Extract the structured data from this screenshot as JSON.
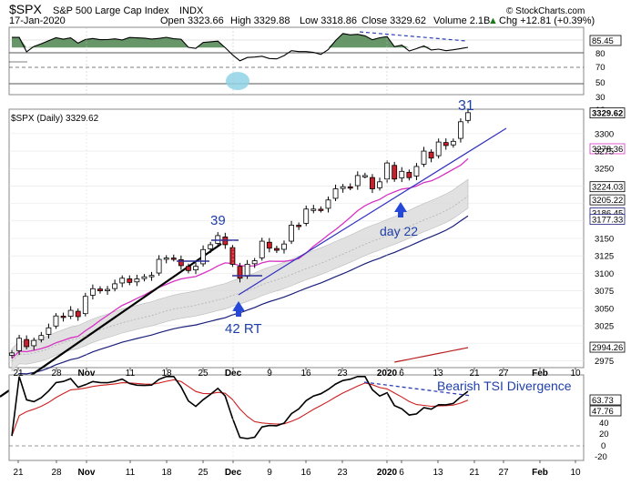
{
  "header": {
    "symbol": "$SPX",
    "name": "S&P 500 Large Cap Index",
    "exchange": "INDX",
    "date": "17-Jan-2020",
    "open": "Open 3323.66",
    "high": "High 3329.88",
    "low": "Low 3318.86",
    "close": "Close 3329.62",
    "volume": "Volume 2.1B",
    "chg": "Chg +12.81 (+0.39%)",
    "up_arrow": "▲",
    "credit": "© StockCharts.com"
  },
  "colors": {
    "candle_up": "#ffffff",
    "candle_down": "#cc1f2a",
    "ma_fast": "#d633c4",
    "ma_mid": "#1a1f7a",
    "trendline": "#3030c0",
    "rsi_fill": "#5f9060",
    "tsi_line": "#000000",
    "tsi_signal": "#cc1f1f",
    "annotation": "#1f3fa8",
    "band_fill": "#dcdcdc",
    "volume_line": "#b82020",
    "rsi_circle": "#8fd3e6"
  },
  "rsi_panel": {
    "flag_value": "85.45",
    "ticks": [
      "80",
      "70",
      "50",
      "30",
      "10"
    ]
  },
  "price_panel": {
    "legend": "$SPX (Daily) 3329.62",
    "flags": [
      "3329.62",
      "3278.36",
      "3224.03",
      "3205.22",
      "3186.45",
      "3177.33",
      "2994.26"
    ],
    "ticks": [
      "3300",
      "3275",
      "3250",
      "3150",
      "3125",
      "3100",
      "3075",
      "3050",
      "3025",
      "2975"
    ],
    "annotations": {
      "label_31": "31",
      "label_39": "39",
      "label_42rt": "42 RT",
      "label_day22": "day 22"
    }
  },
  "tsi_panel": {
    "annotation": "Bearish TSI Divergence",
    "flags": [
      "63.73",
      "47.76"
    ],
    "ticks": [
      "40",
      "20",
      "0",
      "-20"
    ]
  },
  "x_axis": {
    "labels": [
      "21",
      "28",
      "Nov",
      "11",
      "18",
      "25",
      "Dec",
      "9",
      "16",
      "23",
      "2020",
      "6",
      "13",
      "21",
      "27",
      "Feb",
      "10"
    ]
  },
  "chart_data": {
    "type": "line",
    "title": "S&P 500 Large Cap Index",
    "dates": [
      "2019-10-18",
      "2019-10-21",
      "2019-10-22",
      "2019-10-23",
      "2019-10-24",
      "2019-10-25",
      "2019-10-28",
      "2019-10-29",
      "2019-10-30",
      "2019-10-31",
      "2019-11-01",
      "2019-11-04",
      "2019-11-05",
      "2019-11-06",
      "2019-11-07",
      "2019-11-08",
      "2019-11-11",
      "2019-11-12",
      "2019-11-13",
      "2019-11-14",
      "2019-11-15",
      "2019-11-18",
      "2019-11-19",
      "2019-11-20",
      "2019-11-21",
      "2019-11-22",
      "2019-11-25",
      "2019-11-26",
      "2019-11-27",
      "2019-11-29",
      "2019-12-02",
      "2019-12-03",
      "2019-12-04",
      "2019-12-05",
      "2019-12-06",
      "2019-12-09",
      "2019-12-10",
      "2019-12-11",
      "2019-12-12",
      "2019-12-13",
      "2019-12-16",
      "2019-12-17",
      "2019-12-18",
      "2019-12-19",
      "2019-12-20",
      "2019-12-23",
      "2019-12-24",
      "2019-12-26",
      "2019-12-27",
      "2019-12-30",
      "2019-12-31",
      "2020-01-02",
      "2020-01-03",
      "2020-01-06",
      "2020-01-07",
      "2020-01-08",
      "2020-01-09",
      "2020-01-10",
      "2020-01-13",
      "2020-01-14",
      "2020-01-15",
      "2020-01-16",
      "2020-01-17"
    ],
    "close": [
      2986,
      3007,
      2995,
      3004,
      3011,
      3022,
      3039,
      3037,
      3047,
      3038,
      3067,
      3078,
      3075,
      3077,
      3085,
      3093,
      3087,
      3092,
      3095,
      3097,
      3120,
      3122,
      3121,
      3111,
      3104,
      3110,
      3134,
      3141,
      3154,
      3141,
      3113,
      3093,
      3113,
      3118,
      3146,
      3136,
      3133,
      3142,
      3169,
      3168,
      3192,
      3192,
      3191,
      3205,
      3221,
      3224,
      3223,
      3240,
      3240,
      3221,
      3231,
      3258,
      3235,
      3246,
      3237,
      3253,
      3275,
      3265,
      3288,
      3283,
      3289,
      3317,
      3330
    ],
    "series": [
      {
        "name": "$SPX (Daily)",
        "key": "close"
      }
    ],
    "ylim": [
      2965,
      3335
    ],
    "rsi_ylim": [
      0,
      100
    ],
    "tsi_ylim": [
      -30,
      75
    ]
  }
}
